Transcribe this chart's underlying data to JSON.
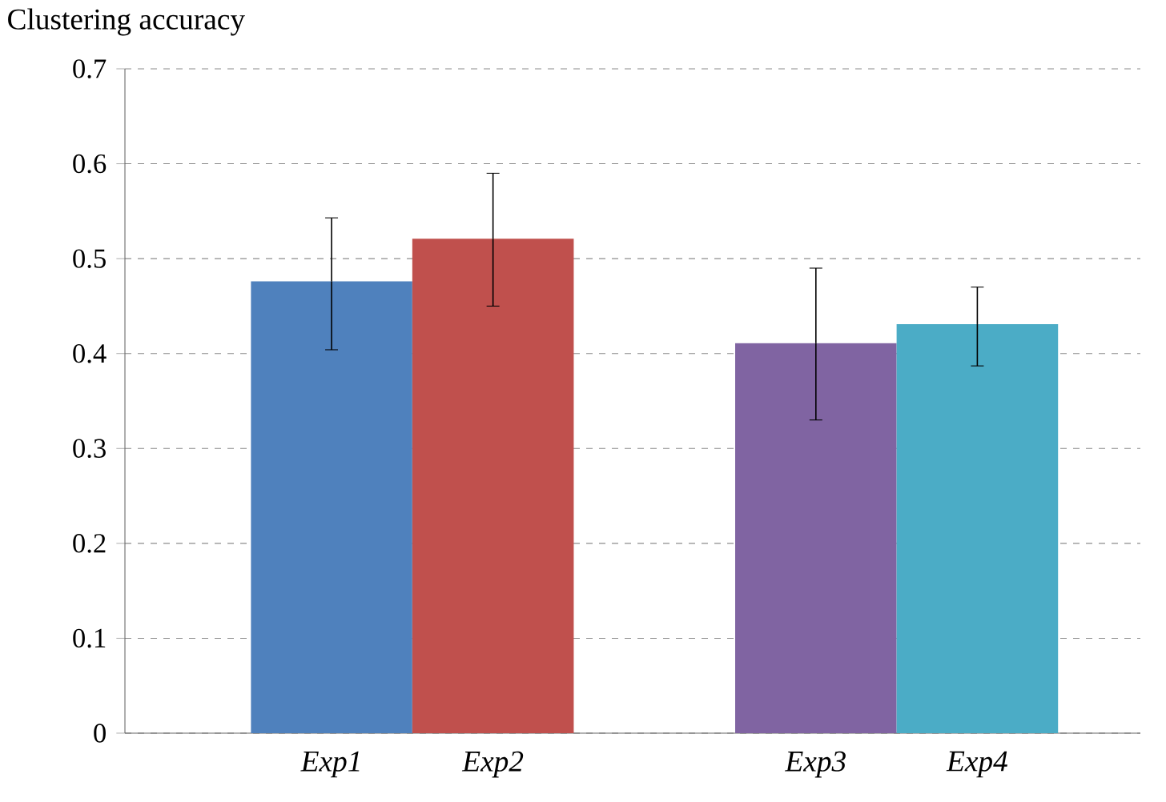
{
  "chart_data": {
    "type": "bar",
    "title": "Clustering accuracy",
    "categories": [
      "Exp1",
      "Exp2",
      null,
      "Exp3",
      "Exp4"
    ],
    "values": [
      0.476,
      0.521,
      null,
      0.411,
      0.431
    ],
    "colors": [
      "#4f81bd",
      "#c0504d",
      null,
      "#8064a2",
      "#4bacc6"
    ],
    "errors": [
      [
        0.404,
        0.543
      ],
      [
        0.45,
        0.59
      ],
      null,
      [
        0.33,
        0.49
      ],
      [
        0.387,
        0.47
      ]
    ],
    "ylim": [
      0,
      0.7
    ],
    "yticks": [
      0,
      0.1,
      0.2,
      0.3,
      0.4,
      0.5,
      0.6,
      0.7
    ],
    "grid": "y"
  }
}
